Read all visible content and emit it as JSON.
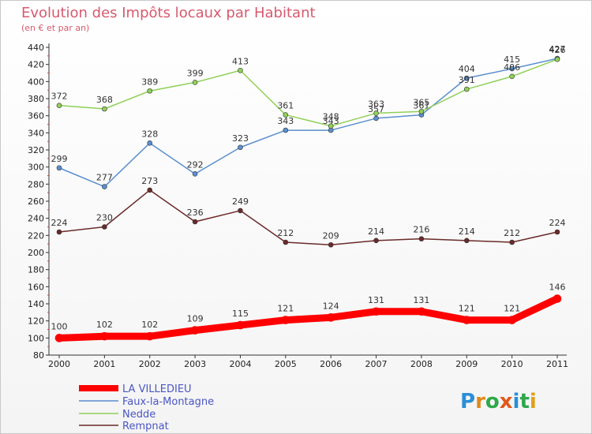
{
  "chart_data": {
    "type": "line",
    "title": "Evolution des Impôts locaux par Habitant",
    "subtitle": "(en € et par an)",
    "categories": [
      "2000",
      "2001",
      "2002",
      "2003",
      "2004",
      "2005",
      "2006",
      "2007",
      "2008",
      "2009",
      "2010",
      "2011"
    ],
    "ylim": [
      80,
      440
    ],
    "yticks": [
      80,
      100,
      120,
      140,
      160,
      180,
      200,
      220,
      240,
      260,
      280,
      300,
      320,
      340,
      360,
      380,
      400,
      420,
      440
    ],
    "grid": false,
    "legend_position": "bottom-left",
    "series": [
      {
        "name": "LA VILLEDIEU",
        "color": "#ff0000",
        "values": [
          100,
          102,
          102,
          109,
          115,
          121,
          124,
          131,
          131,
          121,
          121,
          146
        ]
      },
      {
        "name": "Faux-la-Montagne",
        "color": "#5b8fcf",
        "values": [
          299,
          277,
          328,
          292,
          323,
          343,
          343,
          357,
          361,
          404,
          415,
          427
        ]
      },
      {
        "name": "Nedde",
        "color": "#90d058",
        "values": [
          372,
          368,
          389,
          399,
          413,
          361,
          348,
          363,
          365,
          391,
          406,
          426
        ]
      },
      {
        "name": "Rempnat",
        "color": "#6b2a2a",
        "values": [
          224,
          230,
          273,
          236,
          249,
          212,
          209,
          214,
          216,
          214,
          212,
          224
        ]
      }
    ]
  },
  "logo": {
    "text": "Proxiti"
  }
}
